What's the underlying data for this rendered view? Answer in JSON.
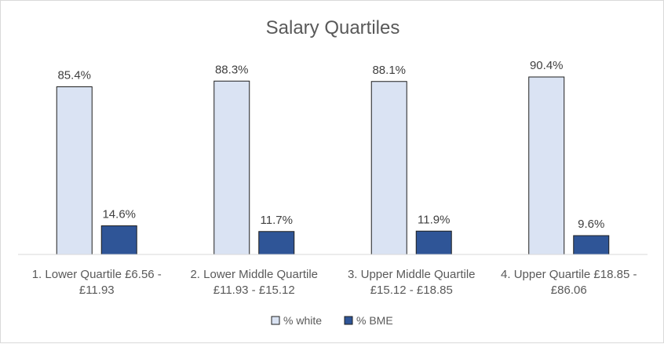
{
  "chart_data": {
    "type": "bar",
    "title": "Salary Quartiles",
    "categories": [
      [
        "1. Lower Quartile £6.56 -",
        "£11.93"
      ],
      [
        "2. Lower Middle Quartile",
        "£11.93 - £15.12"
      ],
      [
        "3. Upper Middle Quartile",
        "£15.12 - £18.85"
      ],
      [
        "4. Upper Quartile £18.85 -",
        "£86.06"
      ]
    ],
    "series": [
      {
        "name": "% white",
        "values": [
          85.4,
          88.3,
          88.1,
          90.4
        ],
        "labels": [
          "85.4%",
          "88.3%",
          "88.1%",
          "90.4%"
        ],
        "color": "#dae3f3"
      },
      {
        "name": "% BME",
        "values": [
          14.6,
          11.7,
          11.9,
          9.6
        ],
        "labels": [
          "14.6%",
          "11.7%",
          "11.9%",
          "9.6%"
        ],
        "color": "#2f5597"
      }
    ],
    "ylim": [
      0,
      100
    ],
    "grid": false,
    "legend": "bottom"
  }
}
